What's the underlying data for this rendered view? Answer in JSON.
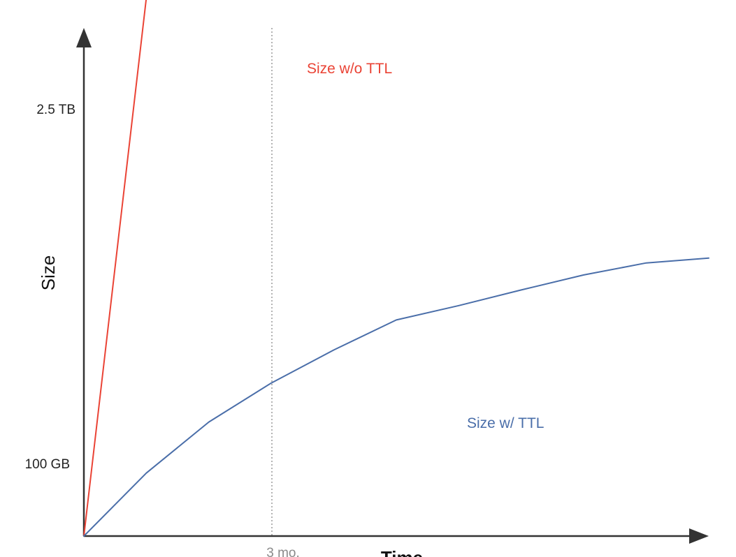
{
  "chart_data": {
    "type": "line",
    "xlabel": "Time",
    "ylabel": "Size",
    "y_ticks": [
      "100 GB",
      "2.5 TB"
    ],
    "x_markers": [
      "3 mo."
    ],
    "series": [
      {
        "name": "Size w/o TTL",
        "color": "#ea4335",
        "trend": "linear, unbounded growth",
        "points": [
          [
            0,
            0
          ],
          [
            3.4,
            3.05
          ]
        ]
      },
      {
        "name": "Size w/ TTL",
        "color": "#4a6ea9",
        "trend": "grows then plateaus",
        "points": [
          [
            0,
            0
          ],
          [
            1.0,
            0.105
          ],
          [
            2.0,
            0.19
          ],
          [
            3.0,
            0.255
          ],
          [
            4.0,
            0.31
          ],
          [
            5.0,
            0.36
          ],
          [
            6.0,
            0.384
          ],
          [
            7.0,
            0.41
          ],
          [
            8.0,
            0.435
          ],
          [
            9.0,
            0.455
          ],
          [
            10.0,
            0.463
          ]
        ]
      }
    ],
    "grid": false
  }
}
